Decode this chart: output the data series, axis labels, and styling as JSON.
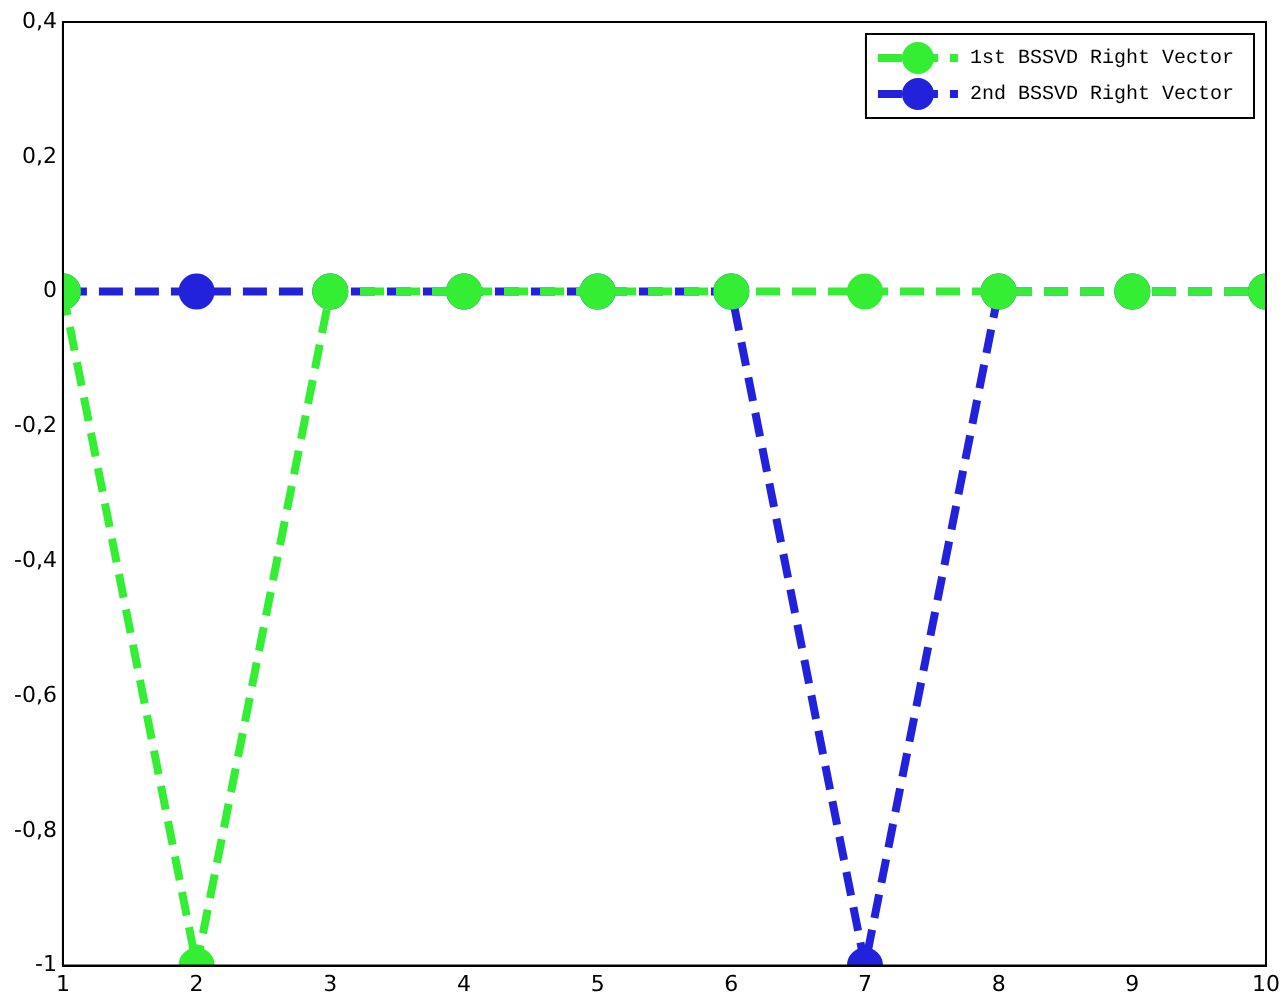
{
  "chart_data": {
    "type": "line",
    "x": [
      1,
      2,
      3,
      4,
      5,
      6,
      7,
      8,
      9,
      10
    ],
    "series": [
      {
        "name": "1st BSSVD Right Vector",
        "color": "#33ee33",
        "values": [
          0,
          -1,
          0,
          0,
          0,
          0,
          0,
          0,
          0,
          0
        ]
      },
      {
        "name": "2nd BSSVD Right Vector",
        "color": "#2222dd",
        "values": [
          0,
          0,
          0,
          0,
          0,
          0,
          -1,
          0,
          0,
          0
        ]
      }
    ],
    "xlim": [
      1,
      10
    ],
    "xticks": [
      1,
      2,
      3,
      4,
      5,
      6,
      7,
      8,
      9,
      10
    ],
    "ylim": [
      -1,
      0.4
    ],
    "yticks": [
      {
        "value": -1,
        "label": "-1"
      },
      {
        "value": -0.8,
        "label": "-0,8"
      },
      {
        "value": -0.6,
        "label": "-0,6"
      },
      {
        "value": -0.4,
        "label": "-0,4"
      },
      {
        "value": -0.2,
        "label": "-0,2"
      },
      {
        "value": 0,
        "label": "0"
      },
      {
        "value": 0.2,
        "label": "0,2"
      },
      {
        "value": 0.4,
        "label": "0,4"
      }
    ],
    "grid": false,
    "legend": "top right",
    "marker": "circle",
    "line_style": "dashed"
  }
}
